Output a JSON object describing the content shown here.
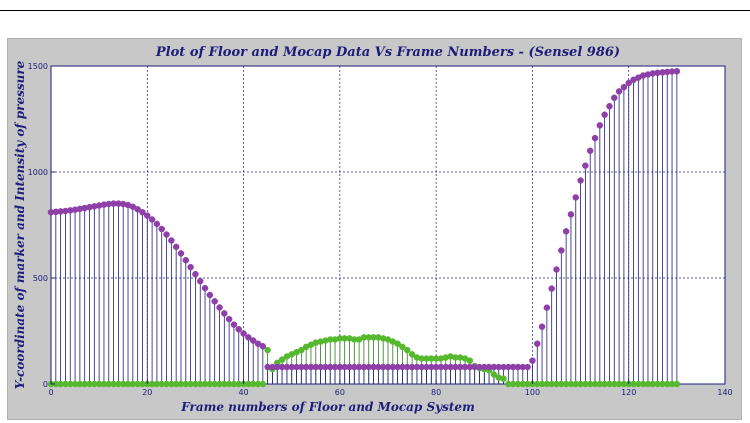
{
  "chart_data": {
    "type": "scatter",
    "title": "Plot of Floor and Mocap Data Vs Frame Numbers - (Sensel 986)",
    "xlabel": "Frame numbers of Floor and Mocap System",
    "ylabel": "Y-coordinate of marker and Intensity of pressure",
    "xlim": [
      0,
      140
    ],
    "ylim": [
      0,
      1500
    ],
    "xticks": [
      0,
      20,
      40,
      60,
      80,
      100,
      120,
      140
    ],
    "yticks": [
      0,
      500,
      1000,
      1500
    ],
    "grid": true,
    "stem": true,
    "colors": {
      "mocap": "#8e3fa8",
      "floor": "#55b82e",
      "stem": "#1c1c7a"
    },
    "series": [
      {
        "key": "mocap",
        "x": [
          0,
          1,
          2,
          3,
          4,
          5,
          6,
          7,
          8,
          9,
          10,
          11,
          12,
          13,
          14,
          15,
          16,
          17,
          18,
          19,
          20,
          21,
          22,
          23,
          24,
          25,
          26,
          27,
          28,
          29,
          30,
          31,
          32,
          33,
          34,
          35,
          36,
          37,
          38,
          39,
          40,
          41,
          42,
          43,
          44,
          45,
          46,
          47,
          48,
          49,
          50,
          51,
          52,
          53,
          54,
          55,
          56,
          57,
          58,
          59,
          60,
          61,
          62,
          63,
          64,
          65,
          66,
          67,
          68,
          69,
          70,
          71,
          72,
          73,
          74,
          75,
          76,
          77,
          78,
          79,
          80,
          81,
          82,
          83,
          84,
          85,
          86,
          87,
          88,
          89,
          90,
          91,
          92,
          93,
          94,
          95,
          96,
          97,
          98,
          99,
          100,
          101,
          102,
          103,
          104,
          105,
          106,
          107,
          108,
          109,
          110,
          111,
          112,
          113,
          114,
          115,
          116,
          117,
          118,
          119,
          120,
          121,
          122,
          123,
          124,
          125,
          126,
          127,
          128,
          129,
          130
        ],
        "y": [
          810,
          812,
          814,
          816,
          819,
          822,
          826,
          830,
          834,
          838,
          842,
          846,
          849,
          851,
          851,
          849,
          844,
          836,
          824,
          810,
          794,
          776,
          755,
          731,
          705,
          677,
          647,
          616,
          584,
          551,
          518,
          485,
          452,
          420,
          390,
          361,
          333,
          306,
          280,
          258,
          238,
          220,
          205,
          190,
          178,
          80,
          80,
          80,
          80,
          80,
          80,
          80,
          80,
          80,
          80,
          80,
          80,
          80,
          80,
          80,
          80,
          80,
          80,
          80,
          80,
          80,
          80,
          80,
          80,
          80,
          80,
          80,
          80,
          80,
          80,
          80,
          80,
          80,
          80,
          80,
          80,
          80,
          80,
          80,
          80,
          80,
          80,
          80,
          80,
          80,
          80,
          80,
          80,
          80,
          80,
          80,
          80,
          80,
          80,
          80,
          110,
          190,
          270,
          360,
          450,
          540,
          630,
          720,
          800,
          880,
          960,
          1030,
          1100,
          1160,
          1220,
          1270,
          1310,
          1350,
          1380,
          1400,
          1420,
          1435,
          1445,
          1455,
          1460,
          1465,
          1468,
          1470,
          1472,
          1474,
          1475
        ]
      },
      {
        "key": "floor",
        "x": [
          0,
          1,
          2,
          3,
          4,
          5,
          6,
          7,
          8,
          9,
          10,
          11,
          12,
          13,
          14,
          15,
          16,
          17,
          18,
          19,
          20,
          21,
          22,
          23,
          24,
          25,
          26,
          27,
          28,
          29,
          30,
          31,
          32,
          33,
          34,
          35,
          36,
          37,
          38,
          39,
          40,
          41,
          42,
          43,
          44,
          45,
          46,
          47,
          48,
          49,
          50,
          51,
          52,
          53,
          54,
          55,
          56,
          57,
          58,
          59,
          60,
          61,
          62,
          63,
          64,
          65,
          66,
          67,
          68,
          69,
          70,
          71,
          72,
          73,
          74,
          75,
          76,
          77,
          78,
          79,
          80,
          81,
          82,
          83,
          84,
          85,
          86,
          87,
          88,
          89,
          90,
          91,
          92,
          93,
          94,
          95,
          96,
          97,
          98,
          99,
          100,
          101,
          102,
          103,
          104,
          105,
          106,
          107,
          108,
          109,
          110,
          111,
          112,
          113,
          114,
          115,
          116,
          117,
          118,
          119,
          120,
          121,
          122,
          123,
          124,
          125,
          126,
          127,
          128,
          129,
          130
        ],
        "y": [
          0,
          0,
          0,
          0,
          0,
          0,
          0,
          0,
          0,
          0,
          0,
          0,
          0,
          0,
          0,
          0,
          0,
          0,
          0,
          0,
          0,
          0,
          0,
          0,
          0,
          0,
          0,
          0,
          0,
          0,
          0,
          0,
          0,
          0,
          0,
          0,
          0,
          0,
          0,
          0,
          0,
          0,
          0,
          0,
          0,
          160,
          70,
          100,
          115,
          130,
          140,
          150,
          160,
          175,
          185,
          195,
          200,
          205,
          210,
          210,
          215,
          215,
          215,
          210,
          210,
          220,
          220,
          220,
          220,
          215,
          210,
          200,
          190,
          175,
          160,
          140,
          125,
          120,
          120,
          120,
          120,
          120,
          125,
          130,
          125,
          125,
          120,
          110,
          85,
          75,
          70,
          65,
          45,
          30,
          25,
          0,
          0,
          0,
          0,
          0,
          0,
          0,
          0,
          0,
          0,
          0,
          0,
          0,
          0,
          0,
          0,
          0,
          0,
          0,
          0,
          0,
          0,
          0,
          0,
          0,
          0,
          0,
          0,
          0,
          0,
          0,
          0,
          0,
          0,
          0,
          0
        ]
      }
    ]
  }
}
